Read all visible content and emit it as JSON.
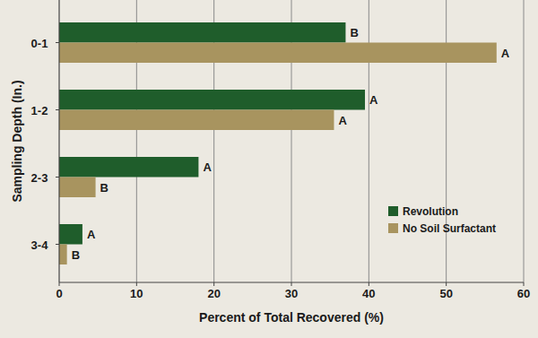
{
  "chart_data": {
    "type": "bar",
    "orientation": "horizontal",
    "x_label": "Percent of Total Recovered (%)",
    "y_label": "Sampling Depth (In.)",
    "categories": [
      "0-1",
      "1-2",
      "2-3",
      "3-4"
    ],
    "series": [
      {
        "name": "Revolution",
        "color": "#1f5d2b",
        "values": [
          37,
          39.5,
          18,
          3
        ],
        "letters": [
          "B",
          "A",
          "A",
          "A"
        ]
      },
      {
        "name": "No Soil Surfactant",
        "color": "#a8945f",
        "values": [
          56.5,
          35.5,
          4.7,
          1
        ],
        "letters": [
          "A",
          "A",
          "B",
          "B"
        ]
      }
    ],
    "xlim": [
      0,
      60
    ],
    "xticks": [
      0,
      10,
      20,
      30,
      40,
      50,
      60
    ],
    "grid": true,
    "legend": "right"
  }
}
